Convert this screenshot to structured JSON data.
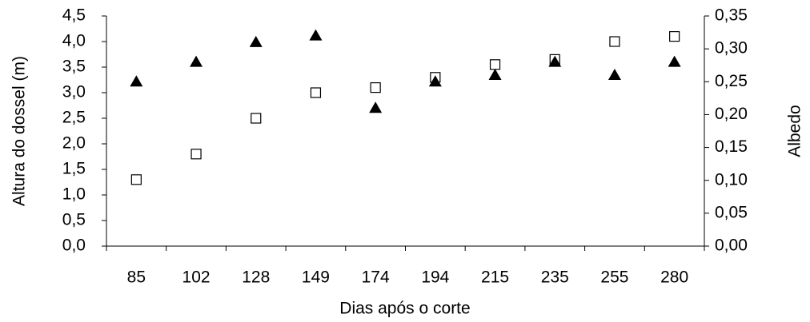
{
  "chart_data": {
    "type": "scatter",
    "x_label": "Dias após o corte",
    "y_label": "Altura do dossel (m)",
    "y2_label": "Albedo",
    "categories": [
      "85",
      "102",
      "128",
      "149",
      "174",
      "194",
      "215",
      "235",
      "255",
      "280"
    ],
    "series": [
      {
        "marker": "square",
        "color": "#000000",
        "values": [
          1.3,
          1.8,
          2.5,
          3.0,
          3.1,
          3.3,
          3.55,
          3.65,
          4.0,
          4.1
        ]
      },
      {
        "marker": "triangle",
        "color": "#000000",
        "axis": "y2",
        "values": [
          0.25,
          0.28,
          0.31,
          0.32,
          0.21,
          0.25,
          0.26,
          0.28,
          0.26,
          0.28
        ]
      }
    ],
    "ylim": [
      0,
      4.5
    ],
    "yticks": [
      {
        "value": 0,
        "label": "0,0"
      },
      {
        "value": 0.5,
        "label": "0,5"
      },
      {
        "value": 1,
        "label": "1,0"
      },
      {
        "value": 1.5,
        "label": "1,5"
      },
      {
        "value": 2,
        "label": "2,0"
      },
      {
        "value": 2.5,
        "label": "2,5"
      },
      {
        "value": 3,
        "label": "3,0"
      },
      {
        "value": 3.5,
        "label": "3,5"
      },
      {
        "value": 4,
        "label": "4,0"
      },
      {
        "value": 4.5,
        "label": "4,5"
      }
    ],
    "y2lim": [
      0,
      0.35
    ],
    "y2ticks": [
      {
        "value": 0,
        "label": "0,00"
      },
      {
        "value": 0.05,
        "label": "0,05"
      },
      {
        "value": 0.1,
        "label": "0,10"
      },
      {
        "value": 0.15,
        "label": "0,15"
      },
      {
        "value": 0.2,
        "label": "0,20"
      },
      {
        "value": 0.25,
        "label": "0,25"
      },
      {
        "value": 0.3,
        "label": "0,30"
      },
      {
        "value": 0.35,
        "label": "0,35"
      }
    ]
  }
}
